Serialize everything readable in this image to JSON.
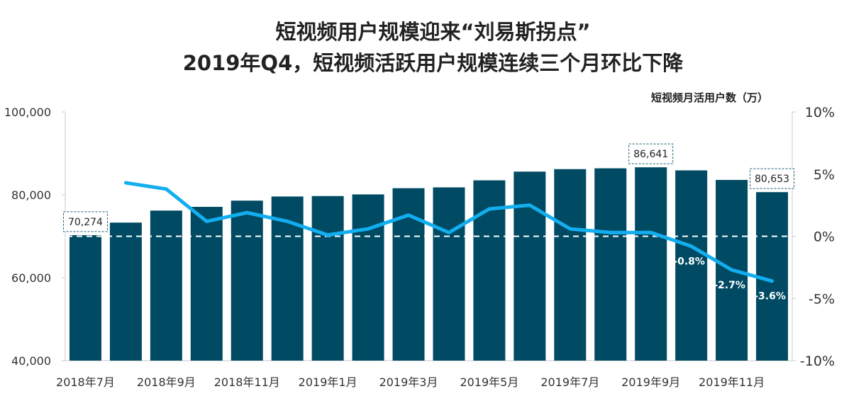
{
  "title_line1": "短视频用户规模迎来“刘易斯拐点”",
  "title_line2": "2019年Q4，短视频活跃用户规模连续三个月环比下降",
  "chart_data": {
    "type": "bar",
    "categories": [
      "2018年7月",
      "2018年8月",
      "2018年9月",
      "2018年10月",
      "2018年11月",
      "2018年12月",
      "2019年1月",
      "2019年2月",
      "2019年3月",
      "2019年4月",
      "2019年5月",
      "2019年6月",
      "2019年7月",
      "2019年8月",
      "2019年9月",
      "2019年10月",
      "2019年11月",
      "2019年12月"
    ],
    "x_tick_labels": [
      "2018年7月",
      "2018年9月",
      "2018年11月",
      "2019年1月",
      "2019年3月",
      "2019年5月",
      "2019年7月",
      "2019年9月",
      "2019年11月"
    ],
    "series": [
      {
        "name": "短视频月活用户数（万）",
        "axis": "left",
        "values": [
          70274,
          73300,
          76200,
          77100,
          78600,
          79600,
          79700,
          80100,
          81600,
          81800,
          83500,
          85600,
          86200,
          86400,
          86641,
          85900,
          83600,
          80653
        ],
        "labeled": {
          "0": "70,274",
          "14": "86,641",
          "17": "80,653"
        }
      },
      {
        "axis": "right",
        "values": [
          null,
          4.3,
          3.8,
          1.2,
          1.9,
          1.2,
          0.1,
          0.6,
          1.7,
          0.3,
          2.2,
          2.5,
          0.6,
          0.3,
          0.3,
          -0.8,
          -2.7,
          -3.6
        ],
        "labeled": {
          "15": "-0.8%",
          "16": "-2.7%",
          "17": "-3.6%"
        }
      }
    ],
    "y_left": {
      "min": 40000,
      "max": 100000,
      "ticks": [
        "40,000",
        "60,000",
        "80,000",
        "100,000"
      ],
      "tick_values": [
        40000,
        60000,
        80000,
        100000
      ]
    },
    "y_right": {
      "min": -10,
      "max": 10,
      "ticks": [
        "-10%",
        "-5%",
        "0%",
        "5%",
        "10%"
      ],
      "tick_values": [
        -10,
        -5,
        0,
        5,
        10
      ]
    },
    "unit_label": "短视频月活用户数（万）",
    "colors": {
      "bar": "#004b63",
      "line": "#12aeef",
      "zero_line": "#ffffff",
      "label_border": "#1f5f73"
    }
  }
}
